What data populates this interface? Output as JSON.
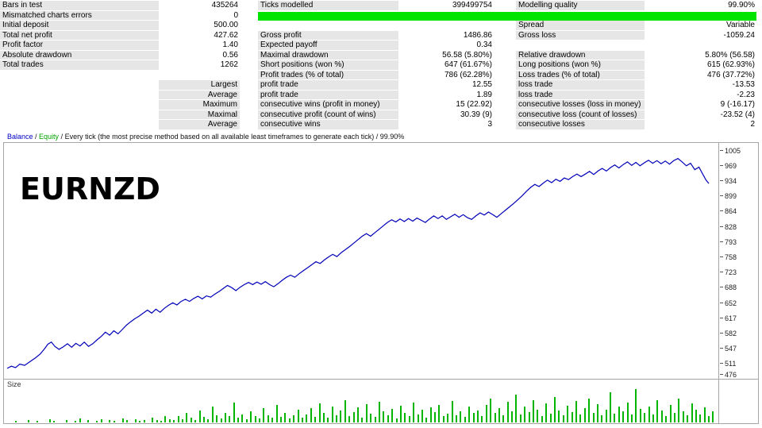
{
  "stats": {
    "rows": [
      {
        "c": [
          "Bars in test",
          "435264",
          "Ticks modelled",
          "399499754",
          "Modelling quality",
          "99.90%"
        ],
        "q": false,
        "bar": false
      },
      {
        "c": [
          "Mismatched charts errors",
          "0",
          "",
          "",
          "",
          ""
        ],
        "q": false,
        "bar": true
      },
      {
        "c": [
          "Initial deposit",
          "500.00",
          "",
          "",
          "Spread",
          "Variable"
        ],
        "q": false,
        "bar": false
      },
      {
        "c": [
          "Total net profit",
          "427.62",
          "Gross profit",
          "1486.86",
          "Gross loss",
          "-1059.24"
        ],
        "q": false,
        "bar": false
      },
      {
        "c": [
          "Profit factor",
          "1.40",
          "Expected payoff",
          "0.34",
          "",
          ""
        ],
        "q": false,
        "bar": false
      },
      {
        "c": [
          "Absolute drawdown",
          "0.56",
          "Maximal drawdown",
          "56.58 (5.80%)",
          "Relative drawdown",
          "5.80% (56.58)"
        ],
        "q": false,
        "bar": false
      },
      {
        "c": [
          "Total trades",
          "1262",
          "Short positions (won %)",
          "647 (61.67%)",
          "Long positions (won %)",
          "615 (62.93%)"
        ],
        "q": false,
        "bar": false
      },
      {
        "c": [
          "",
          "",
          "Profit trades (% of total)",
          "786 (62.28%)",
          "Loss trades (% of total)",
          "476 (37.72%)"
        ],
        "q": false,
        "bar": false
      },
      {
        "c": [
          "",
          "Largest",
          "profit trade",
          "12.55",
          "loss trade",
          "-13.53"
        ],
        "q": true,
        "bar": false
      },
      {
        "c": [
          "",
          "Average",
          "profit trade",
          "1.89",
          "loss trade",
          "-2.23"
        ],
        "q": true,
        "bar": false
      },
      {
        "c": [
          "",
          "Maximum",
          "consecutive wins (profit in money)",
          "15 (22.92)",
          "consecutive losses (loss in money)",
          "9 (-16.17)"
        ],
        "q": true,
        "bar": false
      },
      {
        "c": [
          "",
          "Maximal",
          "consecutive profit (count of wins)",
          "30.39 (9)",
          "consecutive loss (count of losses)",
          "-23.52 (4)"
        ],
        "q": true,
        "bar": false
      },
      {
        "c": [
          "",
          "Average",
          "consecutive wins",
          "3",
          "consecutive losses",
          "2"
        ],
        "q": true,
        "bar": false
      }
    ]
  },
  "chart": {
    "symbol": "EURNZD",
    "size_label": "Size",
    "legend": {
      "balance": "Balance",
      "equity": "Equity",
      "sep": " / ",
      "method": "Every tick (the most precise method based on all available least timeframes to generate each tick)",
      "quality": "99.90%"
    }
  },
  "chart_data": {
    "type": "line",
    "y_axis_labels": [
      1005,
      969,
      934,
      899,
      864,
      828,
      793,
      758,
      723,
      688,
      652,
      617,
      582,
      547,
      511,
      476
    ],
    "y_min": 476,
    "y_max": 1022,
    "series": [
      {
        "name": "Balance",
        "color": "#0000b8",
        "points": [
          [
            0.0,
            500
          ],
          [
            0.006,
            505
          ],
          [
            0.012,
            502
          ],
          [
            0.018,
            510
          ],
          [
            0.025,
            507
          ],
          [
            0.032,
            515
          ],
          [
            0.04,
            524
          ],
          [
            0.047,
            533
          ],
          [
            0.053,
            545
          ],
          [
            0.058,
            556
          ],
          [
            0.063,
            561
          ],
          [
            0.068,
            551
          ],
          [
            0.074,
            544
          ],
          [
            0.08,
            550
          ],
          [
            0.086,
            557
          ],
          [
            0.092,
            549
          ],
          [
            0.098,
            558
          ],
          [
            0.104,
            552
          ],
          [
            0.11,
            561
          ],
          [
            0.116,
            551
          ],
          [
            0.122,
            557
          ],
          [
            0.128,
            566
          ],
          [
            0.134,
            574
          ],
          [
            0.14,
            584
          ],
          [
            0.146,
            577
          ],
          [
            0.152,
            587
          ],
          [
            0.158,
            580
          ],
          [
            0.164,
            590
          ],
          [
            0.17,
            600
          ],
          [
            0.176,
            608
          ],
          [
            0.182,
            615
          ],
          [
            0.188,
            621
          ],
          [
            0.194,
            628
          ],
          [
            0.2,
            635
          ],
          [
            0.206,
            628
          ],
          [
            0.212,
            637
          ],
          [
            0.218,
            630
          ],
          [
            0.224,
            639
          ],
          [
            0.23,
            646
          ],
          [
            0.236,
            652
          ],
          [
            0.242,
            647
          ],
          [
            0.248,
            655
          ],
          [
            0.254,
            660
          ],
          [
            0.26,
            655
          ],
          [
            0.266,
            662
          ],
          [
            0.272,
            667
          ],
          [
            0.278,
            661
          ],
          [
            0.284,
            668
          ],
          [
            0.29,
            665
          ],
          [
            0.296,
            672
          ],
          [
            0.302,
            678
          ],
          [
            0.308,
            685
          ],
          [
            0.314,
            692
          ],
          [
            0.32,
            687
          ],
          [
            0.326,
            680
          ],
          [
            0.332,
            688
          ],
          [
            0.338,
            694
          ],
          [
            0.344,
            699
          ],
          [
            0.35,
            694
          ],
          [
            0.356,
            700
          ],
          [
            0.362,
            695
          ],
          [
            0.368,
            701
          ],
          [
            0.374,
            694
          ],
          [
            0.38,
            689
          ],
          [
            0.386,
            696
          ],
          [
            0.392,
            704
          ],
          [
            0.398,
            711
          ],
          [
            0.404,
            716
          ],
          [
            0.41,
            711
          ],
          [
            0.416,
            719
          ],
          [
            0.422,
            726
          ],
          [
            0.428,
            733
          ],
          [
            0.434,
            740
          ],
          [
            0.44,
            747
          ],
          [
            0.446,
            743
          ],
          [
            0.452,
            751
          ],
          [
            0.458,
            758
          ],
          [
            0.464,
            764
          ],
          [
            0.47,
            759
          ],
          [
            0.476,
            768
          ],
          [
            0.482,
            775
          ],
          [
            0.488,
            782
          ],
          [
            0.494,
            790
          ],
          [
            0.5,
            798
          ],
          [
            0.506,
            806
          ],
          [
            0.512,
            812
          ],
          [
            0.518,
            806
          ],
          [
            0.524,
            814
          ],
          [
            0.53,
            822
          ],
          [
            0.536,
            830
          ],
          [
            0.542,
            838
          ],
          [
            0.548,
            844
          ],
          [
            0.554,
            839
          ],
          [
            0.56,
            846
          ],
          [
            0.566,
            840
          ],
          [
            0.572,
            847
          ],
          [
            0.578,
            841
          ],
          [
            0.584,
            848
          ],
          [
            0.59,
            843
          ],
          [
            0.596,
            838
          ],
          [
            0.602,
            846
          ],
          [
            0.608,
            853
          ],
          [
            0.614,
            847
          ],
          [
            0.62,
            853
          ],
          [
            0.626,
            845
          ],
          [
            0.632,
            851
          ],
          [
            0.638,
            857
          ],
          [
            0.644,
            850
          ],
          [
            0.65,
            856
          ],
          [
            0.656,
            849
          ],
          [
            0.662,
            845
          ],
          [
            0.668,
            853
          ],
          [
            0.674,
            860
          ],
          [
            0.68,
            855
          ],
          [
            0.686,
            862
          ],
          [
            0.692,
            856
          ],
          [
            0.698,
            850
          ],
          [
            0.704,
            858
          ],
          [
            0.71,
            866
          ],
          [
            0.716,
            874
          ],
          [
            0.722,
            882
          ],
          [
            0.728,
            891
          ],
          [
            0.734,
            900
          ],
          [
            0.74,
            910
          ],
          [
            0.746,
            919
          ],
          [
            0.752,
            926
          ],
          [
            0.758,
            921
          ],
          [
            0.764,
            929
          ],
          [
            0.77,
            936
          ],
          [
            0.776,
            930
          ],
          [
            0.782,
            938
          ],
          [
            0.788,
            933
          ],
          [
            0.794,
            941
          ],
          [
            0.8,
            937
          ],
          [
            0.806,
            944
          ],
          [
            0.812,
            950
          ],
          [
            0.818,
            944
          ],
          [
            0.824,
            950
          ],
          [
            0.83,
            956
          ],
          [
            0.836,
            949
          ],
          [
            0.842,
            957
          ],
          [
            0.848,
            963
          ],
          [
            0.854,
            957
          ],
          [
            0.86,
            965
          ],
          [
            0.866,
            971
          ],
          [
            0.872,
            964
          ],
          [
            0.878,
            972
          ],
          [
            0.884,
            978
          ],
          [
            0.89,
            970
          ],
          [
            0.896,
            977
          ],
          [
            0.902,
            969
          ],
          [
            0.908,
            976
          ],
          [
            0.914,
            982
          ],
          [
            0.92,
            975
          ],
          [
            0.926,
            981
          ],
          [
            0.932,
            974
          ],
          [
            0.938,
            980
          ],
          [
            0.944,
            973
          ],
          [
            0.95,
            981
          ],
          [
            0.956,
            986
          ],
          [
            0.962,
            978
          ],
          [
            0.968,
            969
          ],
          [
            0.974,
            975
          ],
          [
            0.98,
            960
          ],
          [
            0.986,
            966
          ],
          [
            0.992,
            948
          ],
          [
            0.996,
            936
          ],
          [
            1.0,
            928
          ]
        ]
      }
    ],
    "size_bars": {
      "name": "Size",
      "color": "#00b400",
      "values": [
        0,
        0,
        2,
        0,
        0,
        3,
        0,
        2,
        0,
        0,
        4,
        2,
        0,
        0,
        3,
        0,
        2,
        5,
        0,
        3,
        0,
        2,
        4,
        0,
        3,
        2,
        0,
        5,
        3,
        0,
        4,
        2,
        3,
        0,
        6,
        3,
        2,
        8,
        4,
        3,
        8,
        4,
        12,
        6,
        3,
        15,
        7,
        4,
        20,
        9,
        5,
        12,
        8,
        25,
        6,
        10,
        4,
        14,
        8,
        5,
        18,
        9,
        6,
        22,
        7,
        12,
        5,
        9,
        16,
        6,
        10,
        18,
        7,
        24,
        12,
        6,
        20,
        9,
        15,
        28,
        8,
        13,
        19,
        6,
        23,
        11,
        7,
        26,
        14,
        9,
        17,
        5,
        21,
        12,
        8,
        25,
        10,
        16,
        6,
        19,
        13,
        22,
        8,
        11,
        27,
        9,
        14,
        7,
        20,
        12,
        15,
        8,
        22,
        30,
        12,
        18,
        9,
        26,
        14,
        35,
        10,
        20,
        13,
        28,
        16,
        8,
        24,
        11,
        32,
        15,
        9,
        21,
        13,
        27,
        10,
        18,
        30,
        12,
        23,
        9,
        16,
        38,
        11,
        20,
        14,
        25,
        10,
        42,
        17,
        12,
        20,
        10,
        28,
        15,
        8,
        22,
        12,
        30,
        14,
        9,
        24,
        16,
        10,
        19,
        8,
        14
      ]
    }
  }
}
